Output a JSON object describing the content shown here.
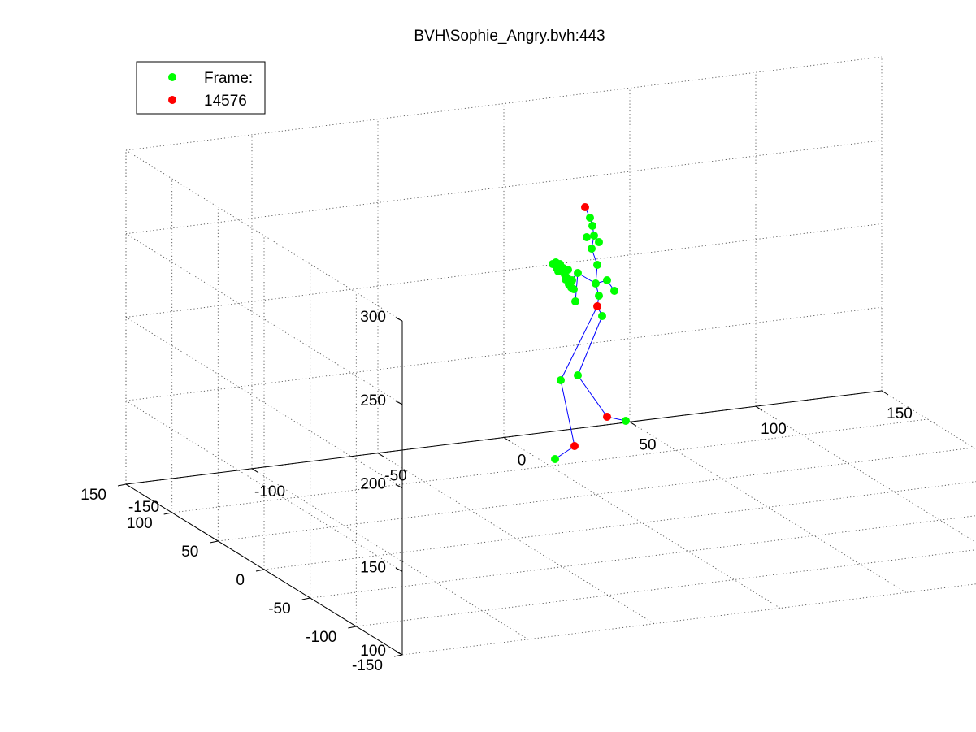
{
  "chart_data": {
    "type": "scatter",
    "title": "BVH\\Sophie_Angry.bvh:443",
    "xlabel": "",
    "ylabel": "",
    "zlabel": "",
    "xlim": [
      -150,
      150
    ],
    "ylim": [
      -150,
      150
    ],
    "zlim": [
      100,
      300
    ],
    "x_ticks": [
      "-150",
      "-100",
      "-50",
      "0",
      "50",
      "100",
      "150"
    ],
    "y_ticks": [
      "-150",
      "-100",
      "-50",
      "0",
      "50",
      "100",
      "150"
    ],
    "z_ticks": [
      "100",
      "150",
      "200",
      "250",
      "300"
    ],
    "grid": true,
    "legend_position": "top-left",
    "legend": [
      {
        "label": "Frame:",
        "color": "#00ff00"
      },
      {
        "label": "14576",
        "color": "#ff0000"
      }
    ],
    "colors": {
      "joint": "#00ff00",
      "end_effector": "#ff0000",
      "bone": "#0000ff"
    },
    "series": [
      {
        "name": "Frame:",
        "color": "#00ff00",
        "note": "skeleton joints"
      },
      {
        "name": "14576",
        "color": "#ff0000",
        "note": "highlighted joints"
      }
    ]
  }
}
